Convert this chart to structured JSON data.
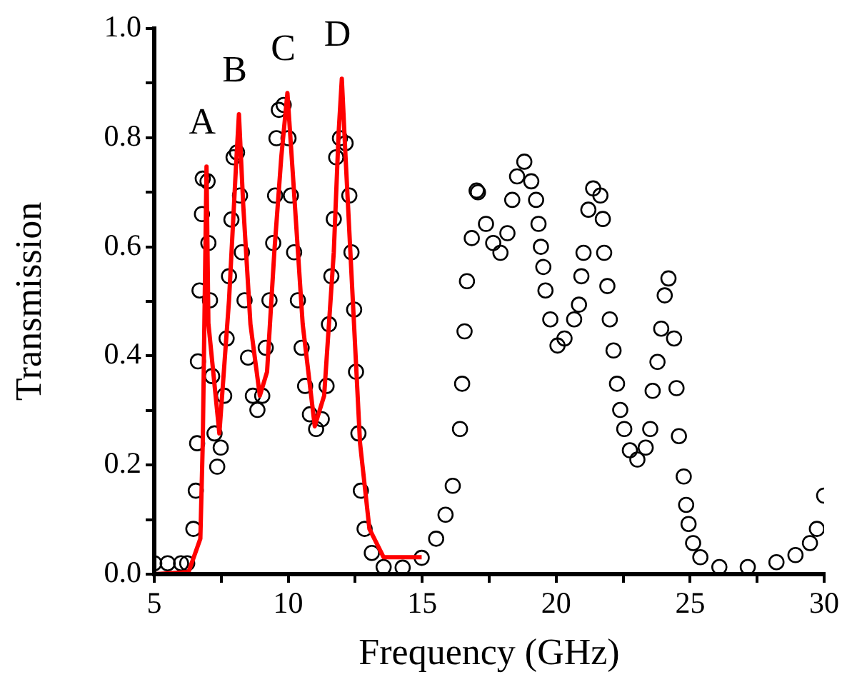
{
  "chart_data": {
    "type": "scatter",
    "xlabel": "Frequency (GHz)",
    "ylabel": "Transmission",
    "xlim": [
      5,
      30
    ],
    "xticks": [
      5,
      {
        "value": 7.5,
        "label": null
      },
      10,
      {
        "value": 12.5,
        "label": null
      },
      15,
      {
        "value": 17.5,
        "label": null
      },
      20,
      {
        "value": 22.5,
        "label": null
      },
      25,
      {
        "value": 27.5,
        "label": null
      },
      30
    ],
    "ylim": [
      0,
      1
    ],
    "yticks": [
      {
        "value": 0,
        "label": "0.0"
      },
      {
        "value": 0.1,
        "label": null
      },
      {
        "value": 0.2,
        "label": "0.2"
      },
      {
        "value": 0.3,
        "label": null
      },
      {
        "value": 0.4,
        "label": "0.4"
      },
      {
        "value": 0.5,
        "label": null
      },
      {
        "value": 0.6,
        "label": "0.6"
      },
      {
        "value": 0.7,
        "label": null
      },
      {
        "value": 0.8,
        "label": "0.8"
      },
      {
        "value": 0.9,
        "label": null
      },
      {
        "value": 1,
        "label": "1.0"
      }
    ],
    "grid": false,
    "legend": false,
    "annotations": [
      "A",
      "B",
      "C",
      "D"
    ],
    "series": [
      {
        "type": "scatter",
        "marker": "circle",
        "color": "#000000",
        "x": [
          5.0,
          5.5,
          6.0,
          6.23,
          6.46,
          6.55,
          6.6,
          6.63,
          6.69,
          6.78,
          6.81,
          6.99,
          7.02,
          7.08,
          7.16,
          7.25,
          7.35,
          7.48,
          7.61,
          7.7,
          7.79,
          7.88,
          7.96,
          8.09,
          8.2,
          8.27,
          8.37,
          8.5,
          8.68,
          8.85,
          9.03,
          9.16,
          9.3,
          9.44,
          9.51,
          9.56,
          9.65,
          9.83,
          10.01,
          10.1,
          10.22,
          10.36,
          10.5,
          10.63,
          10.81,
          11.04,
          11.25,
          11.43,
          11.52,
          11.61,
          11.7,
          11.79,
          11.93,
          12.14,
          12.28,
          12.36,
          12.46,
          12.53,
          12.62,
          12.71,
          12.85,
          13.12,
          13.56,
          14.27,
          14.98,
          15.52,
          15.87,
          16.14,
          16.41,
          16.49,
          16.58,
          16.67,
          16.85,
          17.03,
          17.08,
          17.38,
          17.65,
          17.92,
          18.18,
          18.36,
          18.54,
          18.81,
          19.07,
          19.25,
          19.34,
          19.43,
          19.52,
          19.6,
          19.78,
          20.05,
          20.31,
          20.67,
          20.85,
          20.94,
          21.02,
          21.2,
          21.38,
          21.65,
          21.74,
          21.79,
          21.91,
          22.0,
          22.14,
          22.27,
          22.39,
          22.54,
          22.75,
          23.03,
          23.34,
          23.51,
          23.6,
          23.78,
          23.92,
          24.05,
          24.19,
          24.4,
          24.49,
          24.58,
          24.76,
          24.85,
          24.94,
          25.11,
          25.38,
          26.09,
          27.15,
          28.22,
          28.93,
          29.47,
          29.73,
          30.0
        ],
        "values": [
          0.02,
          0.02,
          0.02,
          0.02,
          0.083,
          0.153,
          0.24,
          0.39,
          0.52,
          0.66,
          0.725,
          0.72,
          0.607,
          0.502,
          0.363,
          0.258,
          0.197,
          0.232,
          0.327,
          0.432,
          0.546,
          0.65,
          0.764,
          0.773,
          0.694,
          0.59,
          0.502,
          0.397,
          0.327,
          0.301,
          0.327,
          0.415,
          0.502,
          0.607,
          0.694,
          0.799,
          0.851,
          0.86,
          0.799,
          0.694,
          0.59,
          0.502,
          0.415,
          0.345,
          0.293,
          0.266,
          0.284,
          0.345,
          0.458,
          0.546,
          0.651,
          0.764,
          0.799,
          0.79,
          0.694,
          0.59,
          0.485,
          0.371,
          0.258,
          0.153,
          0.083,
          0.039,
          0.013,
          0.012,
          0.03,
          0.065,
          0.109,
          0.162,
          0.266,
          0.349,
          0.445,
          0.537,
          0.616,
          0.703,
          0.7,
          0.642,
          0.607,
          0.589,
          0.625,
          0.686,
          0.729,
          0.756,
          0.72,
          0.686,
          0.642,
          0.6,
          0.563,
          0.52,
          0.467,
          0.419,
          0.432,
          0.467,
          0.494,
          0.546,
          0.589,
          0.668,
          0.707,
          0.694,
          0.651,
          0.589,
          0.528,
          0.467,
          0.41,
          0.349,
          0.301,
          0.266,
          0.227,
          0.21,
          0.232,
          0.266,
          0.336,
          0.389,
          0.45,
          0.511,
          0.542,
          0.432,
          0.341,
          0.253,
          0.179,
          0.127,
          0.092,
          0.057,
          0.031,
          0.013,
          0.013,
          0.022,
          0.035,
          0.057,
          0.083,
          0.144
        ]
      },
      {
        "type": "line",
        "marker": "none",
        "line_style": "solid",
        "color": "#ff0000",
        "x": [
          5.0,
          6.28,
          6.72,
          6.81,
          6.95,
          7.02,
          7.43,
          7.79,
          8.05,
          8.16,
          8.32,
          8.59,
          8.94,
          9.21,
          9.48,
          9.74,
          9.97,
          10.19,
          10.54,
          10.99,
          11.34,
          11.7,
          11.88,
          12.0,
          12.14,
          12.41,
          12.68,
          13.03,
          13.56,
          14.98
        ],
        "values": [
          0.0,
          0.004,
          0.065,
          0.24,
          0.747,
          0.46,
          0.258,
          0.502,
          0.747,
          0.843,
          0.677,
          0.458,
          0.327,
          0.371,
          0.59,
          0.764,
          0.882,
          0.72,
          0.458,
          0.271,
          0.327,
          0.59,
          0.808,
          0.908,
          0.764,
          0.502,
          0.24,
          0.083,
          0.031,
          0.031
        ]
      }
    ]
  }
}
